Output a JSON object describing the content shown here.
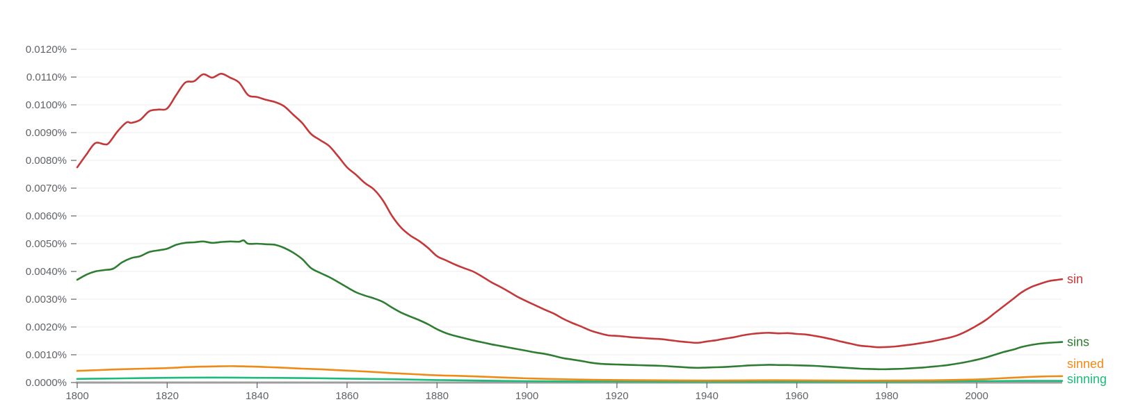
{
  "chart_data": {
    "type": "line",
    "title": "",
    "xlabel": "",
    "ylabel": "",
    "xlim": [
      1800,
      2019
    ],
    "ylim": [
      0,
      0.0125
    ],
    "grid": true,
    "x_ticks": [
      1800,
      1820,
      1840,
      1860,
      1880,
      1900,
      1920,
      1940,
      1960,
      1980,
      2000
    ],
    "x_tick_labels": [
      "1800",
      "1820",
      "1840",
      "1860",
      "1880",
      "1900",
      "1920",
      "1940",
      "1960",
      "1980",
      "2000"
    ],
    "y_ticks": [
      0,
      0.001,
      0.002,
      0.003,
      0.004,
      0.005,
      0.006,
      0.007,
      0.008,
      0.009,
      0.01,
      0.011,
      0.012
    ],
    "y_tick_labels": [
      "0.0000%",
      "0.0010%",
      "0.0020%",
      "0.0030%",
      "0.0040%",
      "0.0050%",
      "0.0060%",
      "0.0070%",
      "0.0080%",
      "0.0090%",
      "0.0100%",
      "0.0110%",
      "0.0120%"
    ],
    "legend": "inline-right",
    "series": [
      {
        "name": "sin",
        "color": "#c5383a",
        "points": [
          [
            1800,
            0.00775
          ],
          [
            1802,
            0.0082
          ],
          [
            1804,
            0.00862
          ],
          [
            1806,
            0.00858
          ],
          [
            1807,
            0.00862
          ],
          [
            1809,
            0.00905
          ],
          [
            1811,
            0.00937
          ],
          [
            1812,
            0.00935
          ],
          [
            1814,
            0.00946
          ],
          [
            1816,
            0.00977
          ],
          [
            1818,
            0.00983
          ],
          [
            1820,
            0.00987
          ],
          [
            1822,
            0.01035
          ],
          [
            1824,
            0.0108
          ],
          [
            1826,
            0.01085
          ],
          [
            1828,
            0.0111
          ],
          [
            1830,
            0.01098
          ],
          [
            1832,
            0.01112
          ],
          [
            1834,
            0.01098
          ],
          [
            1836,
            0.0108
          ],
          [
            1838,
            0.01035
          ],
          [
            1840,
            0.01028
          ],
          [
            1842,
            0.01018
          ],
          [
            1844,
            0.0101
          ],
          [
            1846,
            0.00995
          ],
          [
            1848,
            0.00965
          ],
          [
            1850,
            0.00935
          ],
          [
            1852,
            0.00895
          ],
          [
            1854,
            0.00873
          ],
          [
            1856,
            0.00852
          ],
          [
            1858,
            0.00815
          ],
          [
            1860,
            0.00775
          ],
          [
            1862,
            0.00748
          ],
          [
            1864,
            0.00718
          ],
          [
            1866,
            0.00695
          ],
          [
            1868,
            0.00655
          ],
          [
            1870,
            0.006
          ],
          [
            1872,
            0.00558
          ],
          [
            1874,
            0.0053
          ],
          [
            1876,
            0.0051
          ],
          [
            1878,
            0.00485
          ],
          [
            1880,
            0.00455
          ],
          [
            1882,
            0.0044
          ],
          [
            1884,
            0.00425
          ],
          [
            1886,
            0.00412
          ],
          [
            1888,
            0.004
          ],
          [
            1890,
            0.00382
          ],
          [
            1892,
            0.00362
          ],
          [
            1894,
            0.00345
          ],
          [
            1896,
            0.00327
          ],
          [
            1898,
            0.00308
          ],
          [
            1900,
            0.00292
          ],
          [
            1902,
            0.00277
          ],
          [
            1904,
            0.00262
          ],
          [
            1906,
            0.00248
          ],
          [
            1908,
            0.0023
          ],
          [
            1910,
            0.00215
          ],
          [
            1912,
            0.00202
          ],
          [
            1914,
            0.00188
          ],
          [
            1916,
            0.00178
          ],
          [
            1918,
            0.0017
          ],
          [
            1920,
            0.00168
          ],
          [
            1922,
            0.00165
          ],
          [
            1924,
            0.00162
          ],
          [
            1926,
            0.0016
          ],
          [
            1928,
            0.00158
          ],
          [
            1930,
            0.00156
          ],
          [
            1932,
            0.00152
          ],
          [
            1934,
            0.00148
          ],
          [
            1936,
            0.00145
          ],
          [
            1938,
            0.00143
          ],
          [
            1940,
            0.00148
          ],
          [
            1942,
            0.00152
          ],
          [
            1944,
            0.00158
          ],
          [
            1946,
            0.00163
          ],
          [
            1948,
            0.0017
          ],
          [
            1950,
            0.00175
          ],
          [
            1952,
            0.00178
          ],
          [
            1954,
            0.00179
          ],
          [
            1956,
            0.00177
          ],
          [
            1958,
            0.00178
          ],
          [
            1960,
            0.00175
          ],
          [
            1962,
            0.00173
          ],
          [
            1964,
            0.00168
          ],
          [
            1966,
            0.00162
          ],
          [
            1968,
            0.00155
          ],
          [
            1970,
            0.00147
          ],
          [
            1972,
            0.0014
          ],
          [
            1974,
            0.00133
          ],
          [
            1976,
            0.0013
          ],
          [
            1978,
            0.00127
          ],
          [
            1980,
            0.00128
          ],
          [
            1982,
            0.0013
          ],
          [
            1984,
            0.00134
          ],
          [
            1986,
            0.00138
          ],
          [
            1988,
            0.00143
          ],
          [
            1990,
            0.00148
          ],
          [
            1992,
            0.00155
          ],
          [
            1994,
            0.00162
          ],
          [
            1996,
            0.00172
          ],
          [
            1998,
            0.00187
          ],
          [
            2000,
            0.00205
          ],
          [
            2002,
            0.00225
          ],
          [
            2004,
            0.0025
          ],
          [
            2006,
            0.00275
          ],
          [
            2008,
            0.003
          ],
          [
            2010,
            0.00325
          ],
          [
            2012,
            0.00343
          ],
          [
            2014,
            0.00355
          ],
          [
            2016,
            0.00365
          ],
          [
            2018,
            0.0037
          ],
          [
            2019,
            0.00372
          ]
        ]
      },
      {
        "name": "sins",
        "color": "#2e7d32",
        "points": [
          [
            1800,
            0.0037
          ],
          [
            1802,
            0.00388
          ],
          [
            1804,
            0.004
          ],
          [
            1806,
            0.00405
          ],
          [
            1808,
            0.0041
          ],
          [
            1810,
            0.00433
          ],
          [
            1812,
            0.00448
          ],
          [
            1814,
            0.00455
          ],
          [
            1816,
            0.0047
          ],
          [
            1818,
            0.00476
          ],
          [
            1820,
            0.00482
          ],
          [
            1822,
            0.00496
          ],
          [
            1824,
            0.00503
          ],
          [
            1826,
            0.00505
          ],
          [
            1828,
            0.00508
          ],
          [
            1830,
            0.00503
          ],
          [
            1832,
            0.00506
          ],
          [
            1834,
            0.00508
          ],
          [
            1836,
            0.00507
          ],
          [
            1837,
            0.00512
          ],
          [
            1838,
            0.005
          ],
          [
            1840,
            0.005
          ],
          [
            1842,
            0.00498
          ],
          [
            1844,
            0.00496
          ],
          [
            1846,
            0.00485
          ],
          [
            1848,
            0.00468
          ],
          [
            1850,
            0.00445
          ],
          [
            1852,
            0.00412
          ],
          [
            1854,
            0.00395
          ],
          [
            1856,
            0.0038
          ],
          [
            1858,
            0.00362
          ],
          [
            1860,
            0.00343
          ],
          [
            1862,
            0.00325
          ],
          [
            1864,
            0.00313
          ],
          [
            1866,
            0.00303
          ],
          [
            1868,
            0.0029
          ],
          [
            1870,
            0.0027
          ],
          [
            1872,
            0.00252
          ],
          [
            1874,
            0.00238
          ],
          [
            1876,
            0.00225
          ],
          [
            1878,
            0.0021
          ],
          [
            1880,
            0.00192
          ],
          [
            1882,
            0.00178
          ],
          [
            1884,
            0.00168
          ],
          [
            1886,
            0.0016
          ],
          [
            1888,
            0.00152
          ],
          [
            1890,
            0.00145
          ],
          [
            1892,
            0.00138
          ],
          [
            1894,
            0.00132
          ],
          [
            1896,
            0.00126
          ],
          [
            1898,
            0.0012
          ],
          [
            1900,
            0.00114
          ],
          [
            1902,
            0.00108
          ],
          [
            1904,
            0.00103
          ],
          [
            1906,
            0.00096
          ],
          [
            1908,
            0.00088
          ],
          [
            1910,
            0.00083
          ],
          [
            1912,
            0.00078
          ],
          [
            1914,
            0.00072
          ],
          [
            1916,
            0.00068
          ],
          [
            1918,
            0.00066
          ],
          [
            1920,
            0.00065
          ],
          [
            1922,
            0.00064
          ],
          [
            1924,
            0.00063
          ],
          [
            1926,
            0.00062
          ],
          [
            1928,
            0.00061
          ],
          [
            1930,
            0.0006
          ],
          [
            1932,
            0.00058
          ],
          [
            1934,
            0.00056
          ],
          [
            1936,
            0.00054
          ],
          [
            1938,
            0.00053
          ],
          [
            1940,
            0.00054
          ],
          [
            1942,
            0.00055
          ],
          [
            1944,
            0.00056
          ],
          [
            1946,
            0.00058
          ],
          [
            1948,
            0.0006
          ],
          [
            1950,
            0.00062
          ],
          [
            1952,
            0.00063
          ],
          [
            1954,
            0.00064
          ],
          [
            1956,
            0.00063
          ],
          [
            1958,
            0.00063
          ],
          [
            1960,
            0.00062
          ],
          [
            1962,
            0.00061
          ],
          [
            1964,
            0.0006
          ],
          [
            1966,
            0.00058
          ],
          [
            1968,
            0.00056
          ],
          [
            1970,
            0.00054
          ],
          [
            1972,
            0.00052
          ],
          [
            1974,
            0.0005
          ],
          [
            1976,
            0.00049
          ],
          [
            1978,
            0.00048
          ],
          [
            1980,
            0.00048
          ],
          [
            1982,
            0.00049
          ],
          [
            1984,
            0.0005
          ],
          [
            1986,
            0.00052
          ],
          [
            1988,
            0.00054
          ],
          [
            1990,
            0.00057
          ],
          [
            1992,
            0.0006
          ],
          [
            1994,
            0.00064
          ],
          [
            1996,
            0.00069
          ],
          [
            1998,
            0.00075
          ],
          [
            2000,
            0.00082
          ],
          [
            2002,
            0.0009
          ],
          [
            2004,
            0.001
          ],
          [
            2006,
            0.0011
          ],
          [
            2008,
            0.00118
          ],
          [
            2010,
            0.00128
          ],
          [
            2012,
            0.00135
          ],
          [
            2014,
            0.0014
          ],
          [
            2016,
            0.00143
          ],
          [
            2018,
            0.00145
          ],
          [
            2019,
            0.00146
          ]
        ]
      },
      {
        "name": "sinned",
        "color": "#ef8a17",
        "points": [
          [
            1800,
            0.00042
          ],
          [
            1805,
            0.00045
          ],
          [
            1810,
            0.00048
          ],
          [
            1815,
            0.0005
          ],
          [
            1820,
            0.00052
          ],
          [
            1825,
            0.00056
          ],
          [
            1830,
            0.00058
          ],
          [
            1835,
            0.00059
          ],
          [
            1840,
            0.00057
          ],
          [
            1845,
            0.00054
          ],
          [
            1850,
            0.0005
          ],
          [
            1855,
            0.00047
          ],
          [
            1860,
            0.00043
          ],
          [
            1865,
            0.00039
          ],
          [
            1870,
            0.00034
          ],
          [
            1875,
            0.0003
          ],
          [
            1880,
            0.00026
          ],
          [
            1885,
            0.00024
          ],
          [
            1890,
            0.00021
          ],
          [
            1895,
            0.00018
          ],
          [
            1900,
            0.00015
          ],
          [
            1905,
            0.00013
          ],
          [
            1910,
            0.00011
          ],
          [
            1915,
            0.0001
          ],
          [
            1920,
            9e-05
          ],
          [
            1930,
            8e-05
          ],
          [
            1940,
            7e-05
          ],
          [
            1950,
            8e-05
          ],
          [
            1960,
            8e-05
          ],
          [
            1970,
            7e-05
          ],
          [
            1980,
            7e-05
          ],
          [
            1990,
            8e-05
          ],
          [
            2000,
            0.00011
          ],
          [
            2005,
            0.00015
          ],
          [
            2010,
            0.00019
          ],
          [
            2015,
            0.00022
          ],
          [
            2019,
            0.00023
          ]
        ]
      },
      {
        "name": "sinning",
        "color": "#1bbc7b",
        "points": [
          [
            1800,
            0.00013
          ],
          [
            1810,
            0.00015
          ],
          [
            1820,
            0.00017
          ],
          [
            1830,
            0.00018
          ],
          [
            1840,
            0.00017
          ],
          [
            1850,
            0.00016
          ],
          [
            1860,
            0.00014
          ],
          [
            1870,
            0.00012
          ],
          [
            1880,
            9e-05
          ],
          [
            1890,
            7e-05
          ],
          [
            1900,
            5e-05
          ],
          [
            1910,
            4e-05
          ],
          [
            1920,
            4e-05
          ],
          [
            1930,
            3e-05
          ],
          [
            1940,
            3e-05
          ],
          [
            1950,
            3e-05
          ],
          [
            1960,
            3e-05
          ],
          [
            1970,
            3e-05
          ],
          [
            1980,
            3e-05
          ],
          [
            1990,
            4e-05
          ],
          [
            2000,
            5e-05
          ],
          [
            2010,
            6e-05
          ],
          [
            2019,
            6e-05
          ]
        ]
      }
    ]
  }
}
